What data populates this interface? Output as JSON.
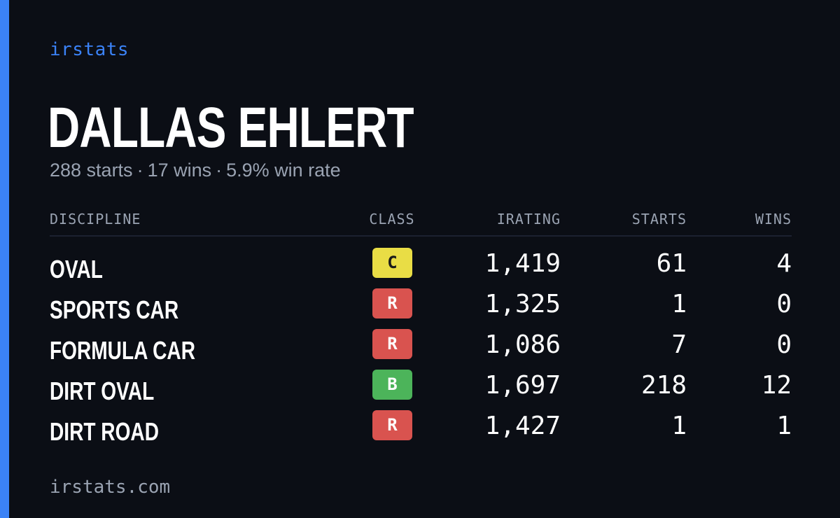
{
  "brand": "irstats",
  "driver": {
    "name": "DALLAS EHLERT"
  },
  "summary": {
    "starts": "288 starts",
    "wins": "17 wins",
    "win_rate": "5.9% win rate",
    "separator": "·"
  },
  "table": {
    "headers": {
      "discipline": "DISCIPLINE",
      "class": "CLASS",
      "irating": "IRATING",
      "starts": "STARTS",
      "wins": "WINS"
    },
    "rows": [
      {
        "discipline": "OVAL",
        "class": "C",
        "class_color": "#e9dd45",
        "class_text_color": "#1a1a1a",
        "irating": "1,419",
        "starts": "61",
        "wins": "4"
      },
      {
        "discipline": "SPORTS CAR",
        "class": "R",
        "class_color": "#d9534f",
        "class_text_color": "#ffffff",
        "irating": "1,325",
        "starts": "1",
        "wins": "0"
      },
      {
        "discipline": "FORMULA CAR",
        "class": "R",
        "class_color": "#d9534f",
        "class_text_color": "#ffffff",
        "irating": "1,086",
        "starts": "7",
        "wins": "0"
      },
      {
        "discipline": "DIRT OVAL",
        "class": "B",
        "class_color": "#4cb45a",
        "class_text_color": "#ffffff",
        "irating": "1,697",
        "starts": "218",
        "wins": "12"
      },
      {
        "discipline": "DIRT ROAD",
        "class": "R",
        "class_color": "#d9534f",
        "class_text_color": "#ffffff",
        "irating": "1,427",
        "starts": "1",
        "wins": "1"
      }
    ]
  },
  "footer": {
    "url": "irstats.com"
  },
  "colors": {
    "accent": "#3b82f6",
    "background": "#0b0e15",
    "muted_text": "#9aa3b2"
  }
}
